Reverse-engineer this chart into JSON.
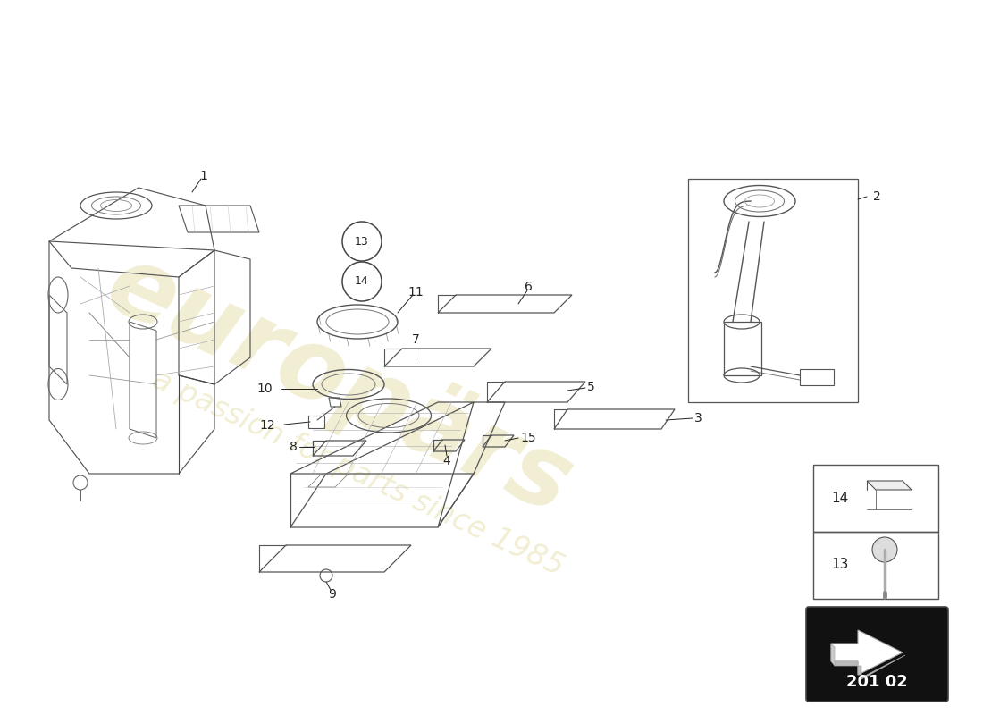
{
  "background_color": "#ffffff",
  "watermark_color": "#d4c870",
  "watermark_alpha": 0.3,
  "diagram_code": "201 02",
  "line_color": "#444444",
  "label_color": "#222222",
  "figsize": [
    11.0,
    8.0
  ],
  "dpi": 100
}
